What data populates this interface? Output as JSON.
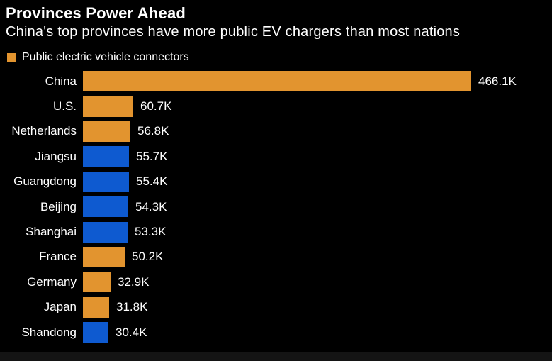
{
  "header": {
    "title": "Provinces Power Ahead",
    "subtitle": "China's top provinces have more public EV chargers than most nations"
  },
  "legend": {
    "label": "Public electric vehicle connectors"
  },
  "colors": {
    "country_bar": "#E2942F",
    "province_bar": "#0E5AD0",
    "background": "#000000",
    "text": "#FFFFFF"
  },
  "chart_data": {
    "type": "bar",
    "orientation": "horizontal",
    "title": "Provinces Power Ahead",
    "subtitle": "China's top provinces have more public EV chargers than most nations",
    "legend_entries": [
      "Public electric vehicle connectors"
    ],
    "unit": "thousand connectors",
    "value_axis_max": 466.1,
    "grid": false,
    "categories": [
      "China",
      "U.S.",
      "Netherlands",
      "Jiangsu",
      "Guangdong",
      "Beijing",
      "Shanghai",
      "France",
      "Germany",
      "Japan",
      "Shandong"
    ],
    "rows": [
      {
        "label": "China",
        "value": 466.1,
        "display": "466.1K",
        "group": "country"
      },
      {
        "label": "U.S.",
        "value": 60.7,
        "display": "60.7K",
        "group": "country"
      },
      {
        "label": "Netherlands",
        "value": 56.8,
        "display": "56.8K",
        "group": "country"
      },
      {
        "label": "Jiangsu",
        "value": 55.7,
        "display": "55.7K",
        "group": "province"
      },
      {
        "label": "Guangdong",
        "value": 55.4,
        "display": "55.4K",
        "group": "province"
      },
      {
        "label": "Beijing",
        "value": 54.3,
        "display": "54.3K",
        "group": "province"
      },
      {
        "label": "Shanghai",
        "value": 53.3,
        "display": "53.3K",
        "group": "province"
      },
      {
        "label": "France",
        "value": 50.2,
        "display": "50.2K",
        "group": "country"
      },
      {
        "label": "Germany",
        "value": 32.9,
        "display": "32.9K",
        "group": "country"
      },
      {
        "label": "Japan",
        "value": 31.8,
        "display": "31.8K",
        "group": "country"
      },
      {
        "label": "Shandong",
        "value": 30.4,
        "display": "30.4K",
        "group": "province"
      }
    ]
  }
}
